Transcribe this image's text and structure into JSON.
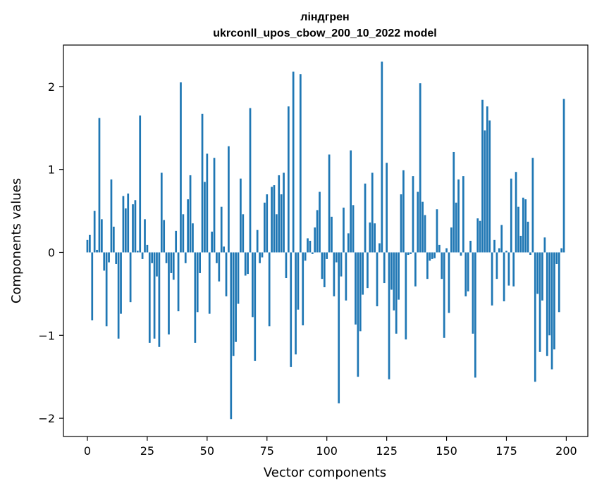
{
  "chart_data": {
    "type": "bar",
    "title": "ліндгрен",
    "subtitle": "ukrconll_upos_cbow_200_10_2022 model",
    "xlabel": "Vector components",
    "ylabel": "Components values",
    "xlim": [
      -10,
      209
    ],
    "ylim": [
      -2.22,
      2.5
    ],
    "xticks": [
      0,
      25,
      50,
      75,
      100,
      125,
      150,
      175,
      200
    ],
    "yticks": [
      -2,
      -1,
      0,
      1,
      2
    ],
    "ytick_labels": [
      "−2",
      "−1",
      "0",
      "1",
      "2"
    ],
    "grid": false,
    "bar_color": "#1f77b4",
    "x": [
      0,
      1,
      2,
      3,
      4,
      5,
      6,
      7,
      8,
      9,
      10,
      11,
      12,
      13,
      14,
      15,
      16,
      17,
      18,
      19,
      20,
      21,
      22,
      23,
      24,
      25,
      26,
      27,
      28,
      29,
      30,
      31,
      32,
      33,
      34,
      35,
      36,
      37,
      38,
      39,
      40,
      41,
      42,
      43,
      44,
      45,
      46,
      47,
      48,
      49,
      50,
      51,
      52,
      53,
      54,
      55,
      56,
      57,
      58,
      59,
      60,
      61,
      62,
      63,
      64,
      65,
      66,
      67,
      68,
      69,
      70,
      71,
      72,
      73,
      74,
      75,
      76,
      77,
      78,
      79,
      80,
      81,
      82,
      83,
      84,
      85,
      86,
      87,
      88,
      89,
      90,
      91,
      92,
      93,
      94,
      95,
      96,
      97,
      98,
      99,
      100,
      101,
      102,
      103,
      104,
      105,
      106,
      107,
      108,
      109,
      110,
      111,
      112,
      113,
      114,
      115,
      116,
      117,
      118,
      119,
      120,
      121,
      122,
      123,
      124,
      125,
      126,
      127,
      128,
      129,
      130,
      131,
      132,
      133,
      134,
      135,
      136,
      137,
      138,
      139,
      140,
      141,
      142,
      143,
      144,
      145,
      146,
      147,
      148,
      149,
      150,
      151,
      152,
      153,
      154,
      155,
      156,
      157,
      158,
      159,
      160,
      161,
      162,
      163,
      164,
      165,
      166,
      167,
      168,
      169,
      170,
      171,
      172,
      173,
      174,
      175,
      176,
      177,
      178,
      179,
      180,
      181,
      182,
      183,
      184,
      185,
      186,
      187,
      188,
      189,
      190,
      191,
      192,
      193,
      194,
      195,
      196,
      197,
      198,
      199
    ],
    "values": [
      0.15,
      0.21,
      -0.82,
      0.5,
      0.03,
      1.62,
      0.4,
      -0.22,
      -0.89,
      -0.12,
      0.88,
      0.31,
      -0.14,
      -1.04,
      -0.74,
      0.68,
      0.53,
      0.71,
      -0.6,
      0.58,
      0.63,
      0.02,
      1.65,
      -0.08,
      0.4,
      0.09,
      -1.09,
      -0.13,
      -1.04,
      -0.29,
      -1.14,
      0.96,
      0.39,
      -0.13,
      -0.99,
      -0.25,
      -0.33,
      0.26,
      -0.71,
      2.05,
      0.46,
      -0.13,
      0.64,
      0.93,
      0.35,
      -1.09,
      -0.72,
      -0.25,
      1.67,
      0.85,
      1.19,
      -0.74,
      0.25,
      1.14,
      -0.13,
      -0.35,
      0.55,
      0.07,
      -0.53,
      1.28,
      -2.01,
      -1.25,
      -1.08,
      -0.62,
      0.89,
      0.46,
      -0.28,
      -0.26,
      1.74,
      -0.78,
      -1.31,
      0.27,
      -0.13,
      -0.06,
      0.6,
      0.7,
      -0.89,
      0.79,
      0.81,
      0.46,
      0.93,
      0.7,
      0.96,
      -0.31,
      1.76,
      -1.38,
      2.18,
      -1.23,
      -0.69,
      2.15,
      -0.88,
      -0.1,
      0.17,
      0.14,
      -0.02,
      0.3,
      0.51,
      0.73,
      -0.32,
      -0.42,
      -0.08,
      1.18,
      0.43,
      -0.53,
      -0.12,
      -1.82,
      -0.29,
      0.54,
      -0.58,
      0.23,
      1.23,
      0.57,
      -0.87,
      -1.5,
      -0.95,
      -0.51,
      0.83,
      -0.43,
      0.36,
      0.96,
      0.35,
      -0.65,
      0.11,
      2.3,
      -0.37,
      1.08,
      -1.53,
      -0.45,
      -0.7,
      -0.98,
      -0.57,
      0.7,
      0.99,
      -1.05,
      -0.03,
      -0.02,
      0.92,
      -0.41,
      0.73,
      2.04,
      0.61,
      0.45,
      -0.32,
      -0.1,
      -0.08,
      -0.07,
      0.52,
      0.09,
      -0.32,
      -1.03,
      0.05,
      -0.73,
      0.3,
      1.21,
      0.6,
      0.88,
      -0.04,
      0.92,
      -0.53,
      -0.47,
      0.14,
      -0.98,
      -1.51,
      0.41,
      0.38,
      1.84,
      1.47,
      1.76,
      1.59,
      -0.64,
      0.15,
      -0.32,
      0.05,
      0.33,
      -0.59,
      0.02,
      -0.4,
      0.89,
      -0.41,
      0.97,
      0.55,
      0.2,
      0.66,
      0.64,
      0.37,
      -0.03,
      1.14,
      -1.56,
      -0.5,
      -1.2,
      -0.58,
      0.18,
      -1.25,
      -1.0,
      -1.41,
      -1.17,
      -0.14,
      -0.72,
      0.05,
      1.85
    ]
  }
}
